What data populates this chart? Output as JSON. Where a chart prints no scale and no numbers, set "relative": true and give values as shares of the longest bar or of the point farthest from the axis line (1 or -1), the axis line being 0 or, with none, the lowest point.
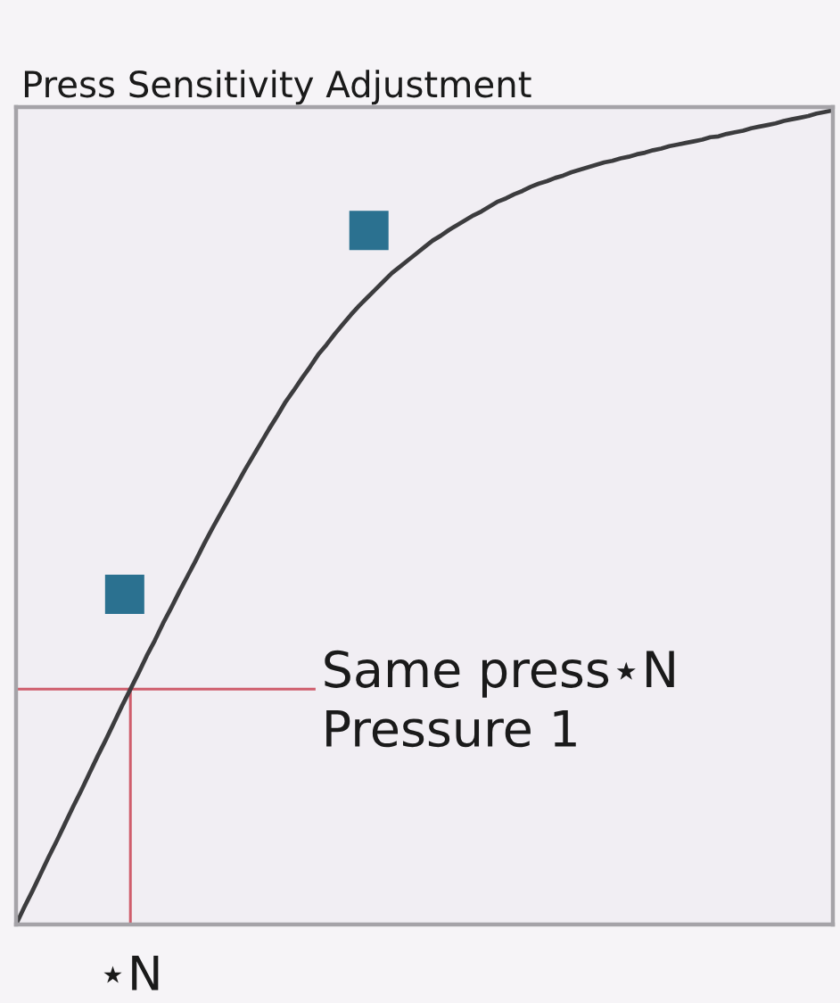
{
  "chart_data": {
    "type": "line",
    "title": "Press Sensitivity Adjustment",
    "relative": true,
    "categories": [
      null,
      null,
      null,
      null,
      null,
      null,
      null,
      null,
      null,
      null,
      null,
      null,
      null,
      null,
      null,
      null,
      null,
      null,
      null,
      null,
      null,
      null,
      null,
      null,
      null,
      null,
      null,
      null,
      null,
      null,
      null,
      null,
      null,
      null,
      null,
      null,
      null,
      null,
      null,
      null,
      null,
      null,
      null,
      null,
      null,
      null,
      null,
      null,
      null,
      null,
      null,
      null,
      null,
      null,
      null,
      null,
      null,
      null,
      null,
      null,
      null,
      null,
      null,
      null,
      null,
      null,
      null,
      null,
      null,
      null,
      null,
      null,
      null,
      null,
      null,
      null,
      null,
      null,
      null,
      null,
      null,
      null,
      null,
      null,
      null,
      null,
      null,
      null,
      null,
      null,
      null,
      null,
      null,
      null,
      null,
      null,
      null,
      null,
      null,
      null,
      null
    ],
    "series": [
      {
        "color": "#3c3c3e",
        "values": [
          0,
          0.021,
          0.041,
          0.062,
          0.083,
          0.103,
          0.124,
          0.145,
          0.165,
          0.186,
          0.207,
          0.227,
          0.248,
          0.269,
          0.289,
          0.309,
          0.33,
          0.349,
          0.37,
          0.389,
          0.409,
          0.428,
          0.447,
          0.467,
          0.486,
          0.504,
          0.522,
          0.54,
          0.558,
          0.575,
          0.592,
          0.609,
          0.625,
          0.642,
          0.656,
          0.671,
          0.685,
          0.7,
          0.712,
          0.725,
          0.737,
          0.749,
          0.76,
          0.77,
          0.78,
          0.79,
          0.8,
          0.808,
          0.816,
          0.824,
          0.832,
          0.84,
          0.846,
          0.853,
          0.859,
          0.865,
          0.871,
          0.876,
          0.882,
          0.888,
          0.892,
          0.897,
          0.901,
          0.906,
          0.91,
          0.913,
          0.917,
          0.92,
          0.924,
          0.927,
          0.93,
          0.933,
          0.936,
          0.938,
          0.941,
          0.943,
          0.946,
          0.948,
          0.951,
          0.953,
          0.956,
          0.958,
          0.96,
          0.962,
          0.964,
          0.967,
          0.968,
          0.971,
          0.973,
          0.975,
          0.978,
          0.98,
          0.982,
          0.984,
          0.987,
          0.989,
          0.991,
          0.993,
          0.996,
          0.998,
          1
        ]
      }
    ],
    "annotations": [
      "Same press⋆N\nPressure 1",
      "⋆N"
    ]
  }
}
